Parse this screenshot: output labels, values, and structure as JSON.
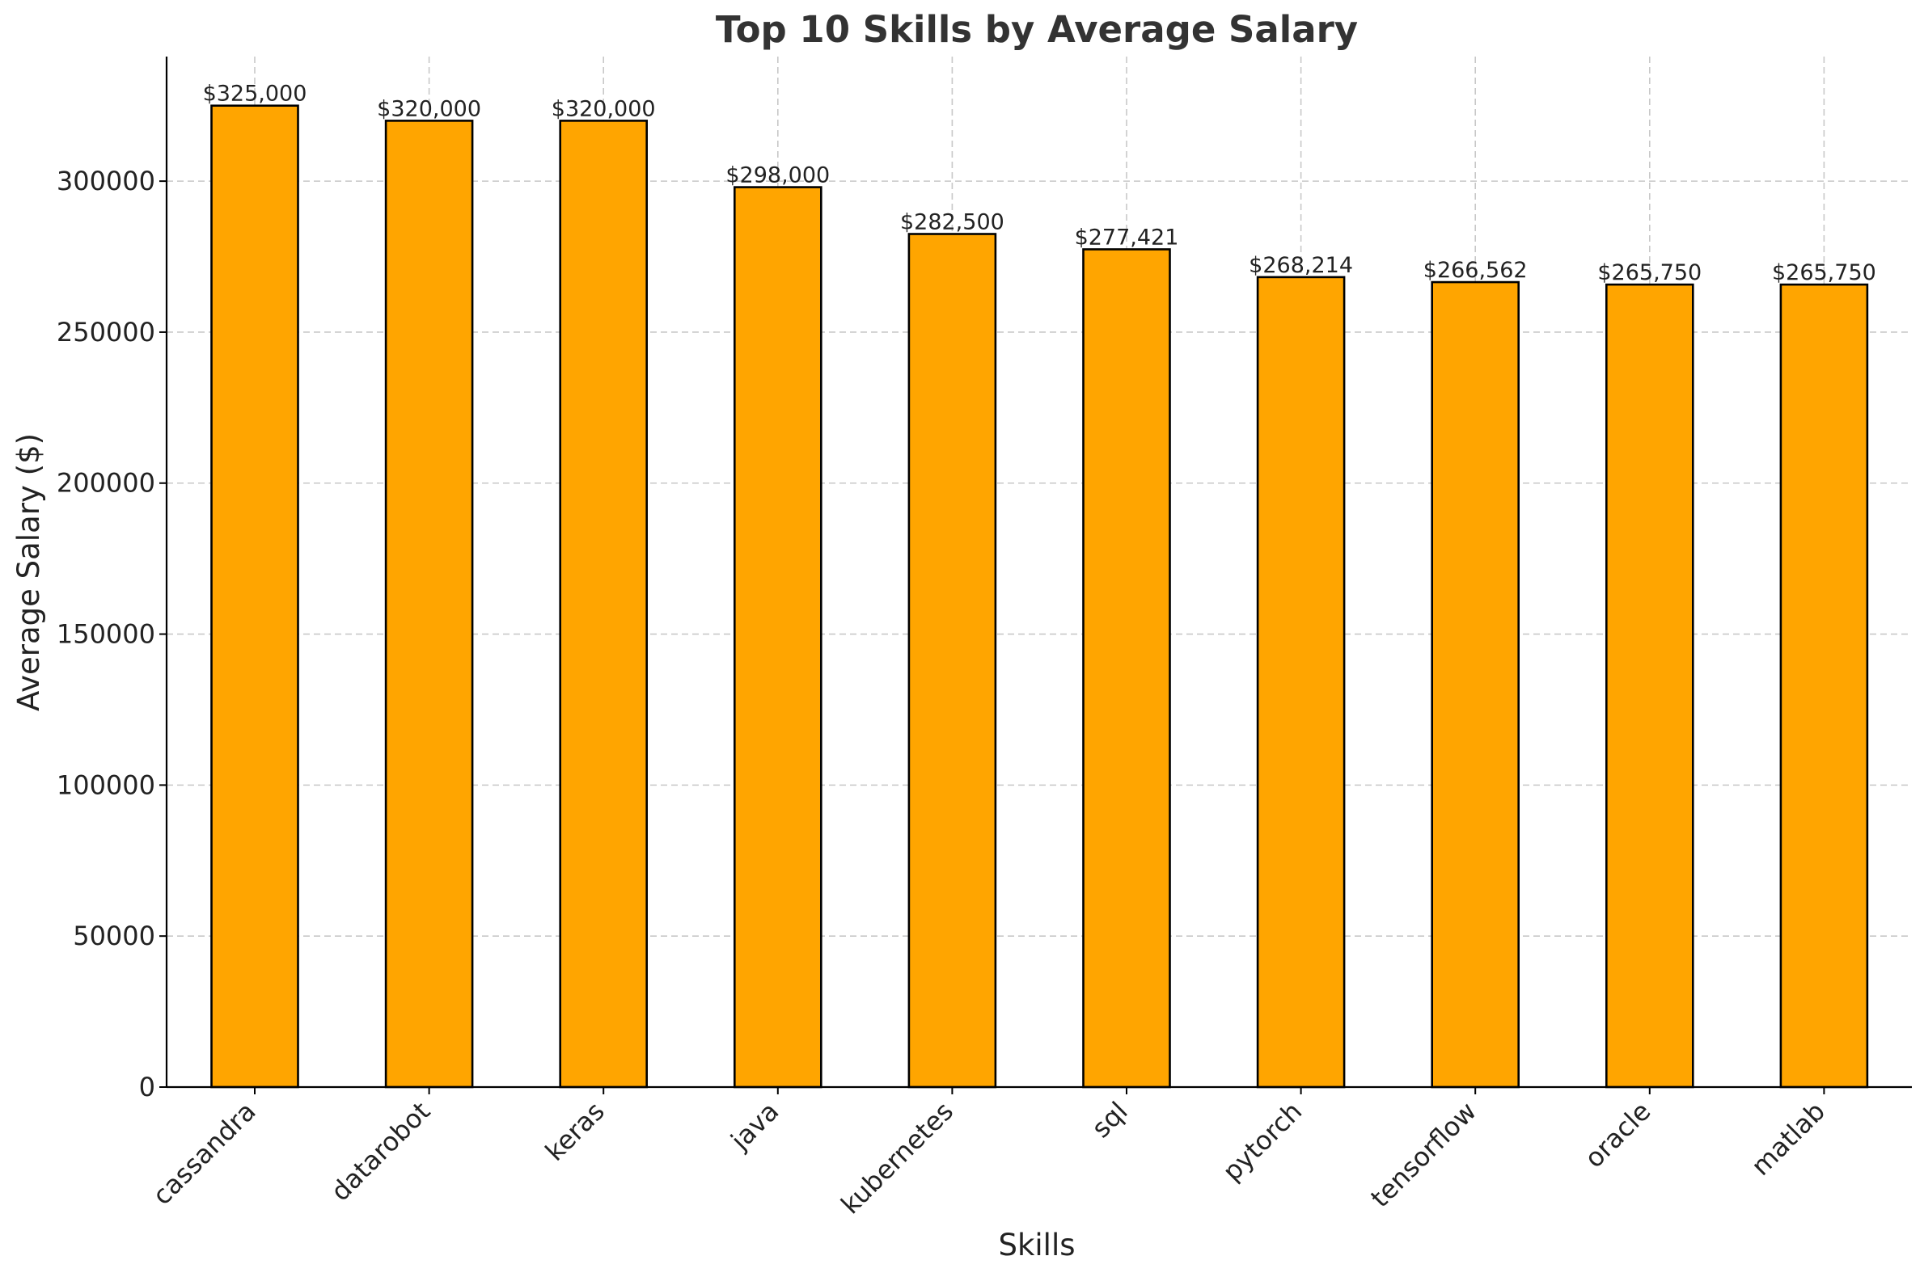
{
  "chart_data": {
    "type": "bar",
    "title": "Top 10 Skills by Average Salary",
    "xlabel": "Skills",
    "ylabel": "Average Salary ($)",
    "categories": [
      "cassandra",
      "datarobot",
      "keras",
      "java",
      "kubernetes",
      "sql",
      "pytorch",
      "tensorflow",
      "oracle",
      "matlab"
    ],
    "values": [
      325000,
      320000,
      320000,
      298000,
      282500,
      277421,
      268214,
      266562,
      265750,
      265750
    ],
    "value_labels": [
      "$325,000",
      "$320,000",
      "$320,000",
      "$298,000",
      "$282,500",
      "$277,421",
      "$268,214",
      "$266,562",
      "$265,750",
      "$265,750"
    ],
    "y_ticks": [
      0,
      50000,
      100000,
      150000,
      200000,
      250000,
      300000
    ],
    "y_tick_labels": [
      "0",
      "50000",
      "100000",
      "150000",
      "200000",
      "250000",
      "300000"
    ],
    "ylim": [
      0,
      341250
    ],
    "grid": true,
    "legend": false,
    "bar_color": "#FFA500",
    "edge_color": "#000000",
    "x_tick_rotation": 45
  }
}
